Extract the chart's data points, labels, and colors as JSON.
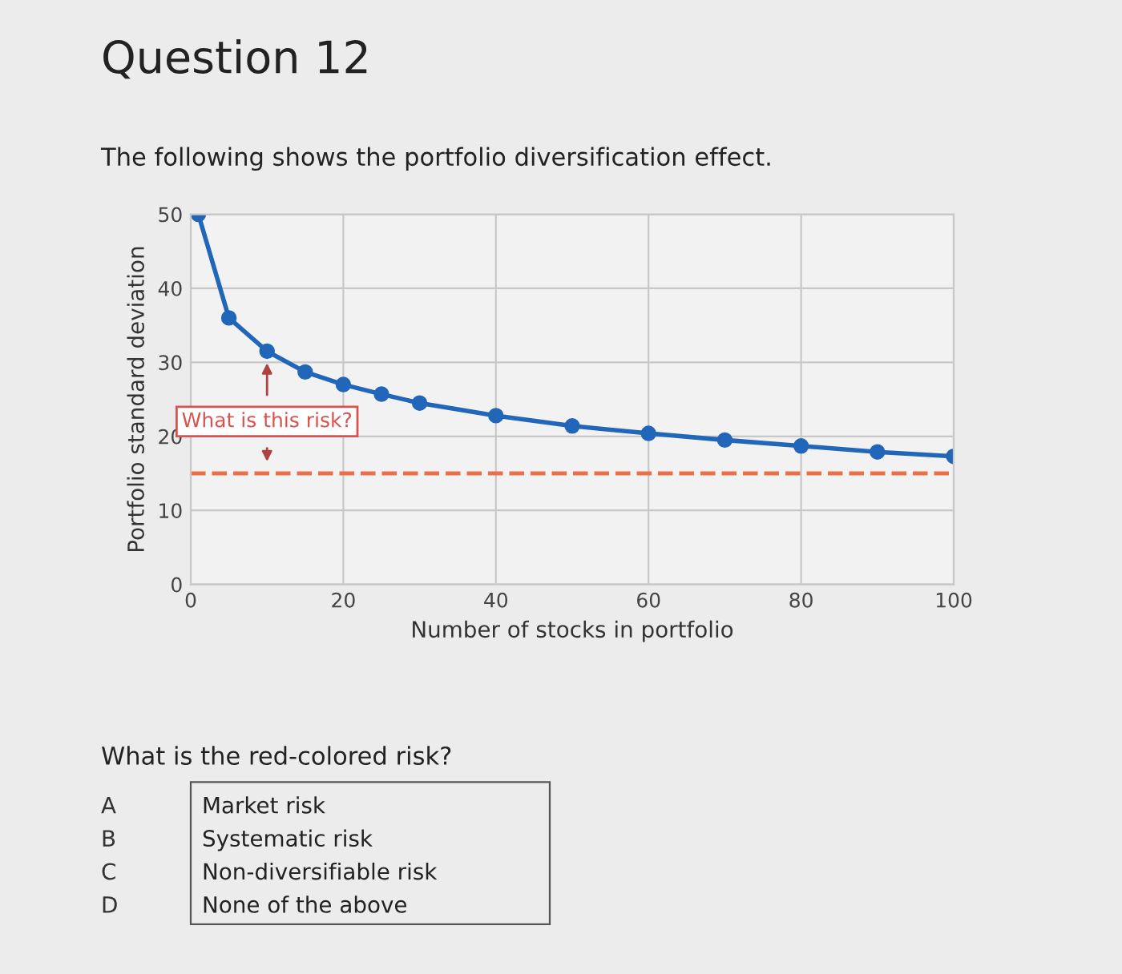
{
  "chart_data": {
    "type": "line",
    "title": "Question 12",
    "subtitle": "The following shows the portfolio diversification effect.",
    "xlabel": "Number of stocks in portfolio",
    "ylabel": "Portfolio standard deviation",
    "x": [
      1,
      5,
      10,
      15,
      20,
      25,
      30,
      40,
      50,
      60,
      70,
      80,
      90,
      100
    ],
    "series": [
      {
        "color": "#2166b8",
        "values": [
          50,
          36,
          31.5,
          28.7,
          27,
          25.7,
          24.5,
          22.8,
          21.4,
          20.4,
          19.5,
          18.7,
          17.9,
          17.3
        ]
      }
    ],
    "xlim": [
      0,
      100
    ],
    "ylim": [
      0,
      50
    ],
    "xticks": [
      0,
      20,
      40,
      60,
      80,
      100
    ],
    "yticks": [
      0,
      10,
      20,
      30,
      40,
      50
    ],
    "grid": true,
    "marker": "circle",
    "line_style": "solid",
    "legend": false,
    "ref_lines": [
      {
        "axis": "y",
        "value": 15,
        "color": "#e8704a",
        "line_style": "dashed"
      }
    ],
    "annotations": [
      "What is this risk?",
      "What is the red-colored risk?",
      "A",
      "Market risk",
      "B",
      "Systematic risk",
      "C",
      "Non-diversifiable risk",
      "D",
      "None of the above"
    ]
  }
}
